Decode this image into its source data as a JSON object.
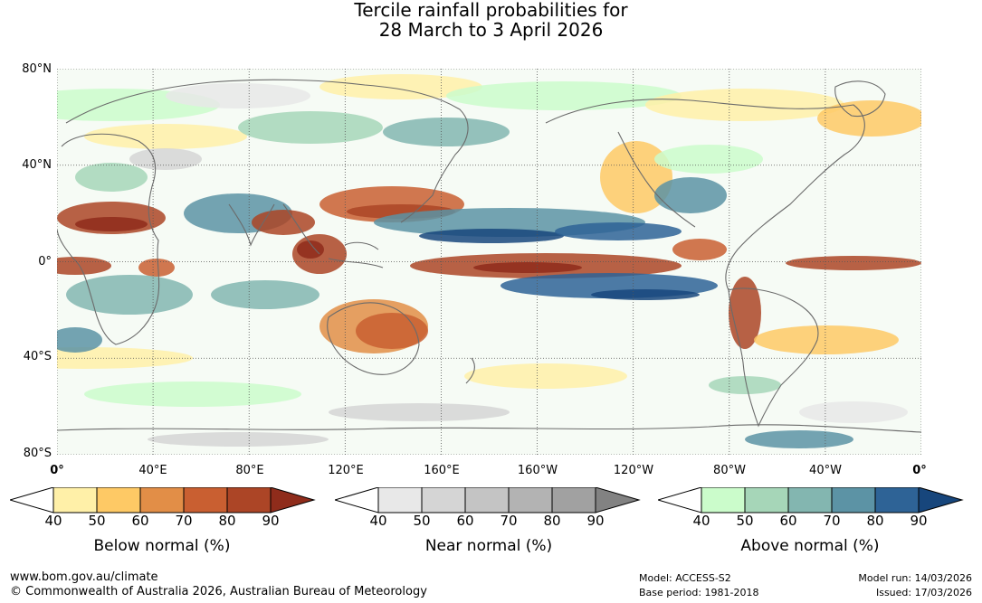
{
  "title_line1": "Tercile rainfall probabilities for",
  "title_line2": "28 March to 3 April 2026",
  "map": {
    "lat_labels": [
      "80°N",
      "40°N",
      "0°",
      "40°S",
      "80°S"
    ],
    "lon_labels": [
      "0°",
      "40°E",
      "80°E",
      "120°E",
      "160°E",
      "160°W",
      "120°W",
      "80°W",
      "40°W",
      "0°"
    ]
  },
  "legends": [
    {
      "name": "below",
      "label": "Below normal (%)",
      "ticks": [
        "40",
        "50",
        "60",
        "70",
        "80",
        "90"
      ],
      "colors": [
        "#fff0a8",
        "#fec965",
        "#e28e47",
        "#c95f31",
        "#ac4526",
        "#8f2c1b"
      ]
    },
    {
      "name": "near",
      "label": "Near normal (%)",
      "ticks": [
        "40",
        "50",
        "60",
        "70",
        "80",
        "90"
      ],
      "colors": [
        "#e8e8e8",
        "#d5d5d5",
        "#c4c4c4",
        "#b3b3b3",
        "#a1a1a1",
        "#828282"
      ]
    },
    {
      "name": "above",
      "label": "Above normal (%)",
      "ticks": [
        "40",
        "50",
        "60",
        "70",
        "80",
        "90"
      ],
      "colors": [
        "#cbfccb",
        "#a6d6b8",
        "#83b6b0",
        "#5c93a5",
        "#2e6396",
        "#17467c"
      ]
    }
  ],
  "footer": {
    "website": "www.bom.gov.au/climate",
    "copyright": "© Commonwealth of Australia 2026, Australian Bureau of Meteorology",
    "model": "Model: ACCESS-S2",
    "base_period": "Base period: 1981-2018",
    "model_run": "Model run: 14/03/2026",
    "issued": "Issued: 17/03/2026"
  }
}
